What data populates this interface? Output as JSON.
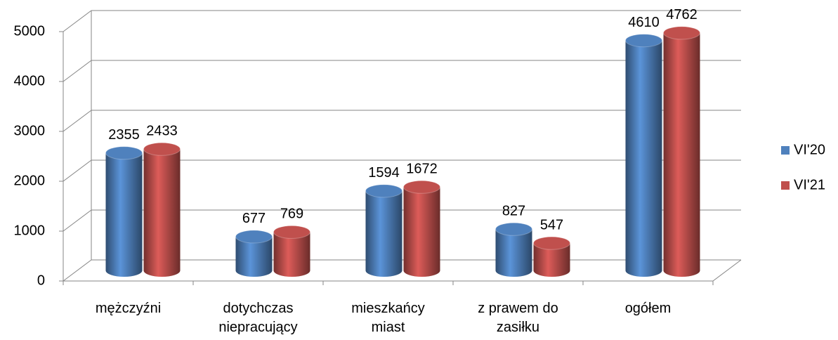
{
  "chart_data": {
    "type": "bar3d",
    "categories": [
      "mężczyźni",
      "dotychczas niepracujący",
      "mieszkańcy miast",
      "z prawem do zasiłku",
      "ogółem"
    ],
    "series": [
      {
        "name": "VI'20",
        "color": "#4f81bd",
        "values": [
          2355,
          677,
          1594,
          827,
          4610
        ]
      },
      {
        "name": "VI'21",
        "color": "#c0504d",
        "values": [
          2433,
          769,
          1672,
          547,
          4762
        ]
      }
    ],
    "ylim": [
      0,
      5000
    ],
    "yticks": [
      0,
      1000,
      2000,
      3000,
      4000,
      5000
    ],
    "grid": true,
    "legend": "right"
  }
}
